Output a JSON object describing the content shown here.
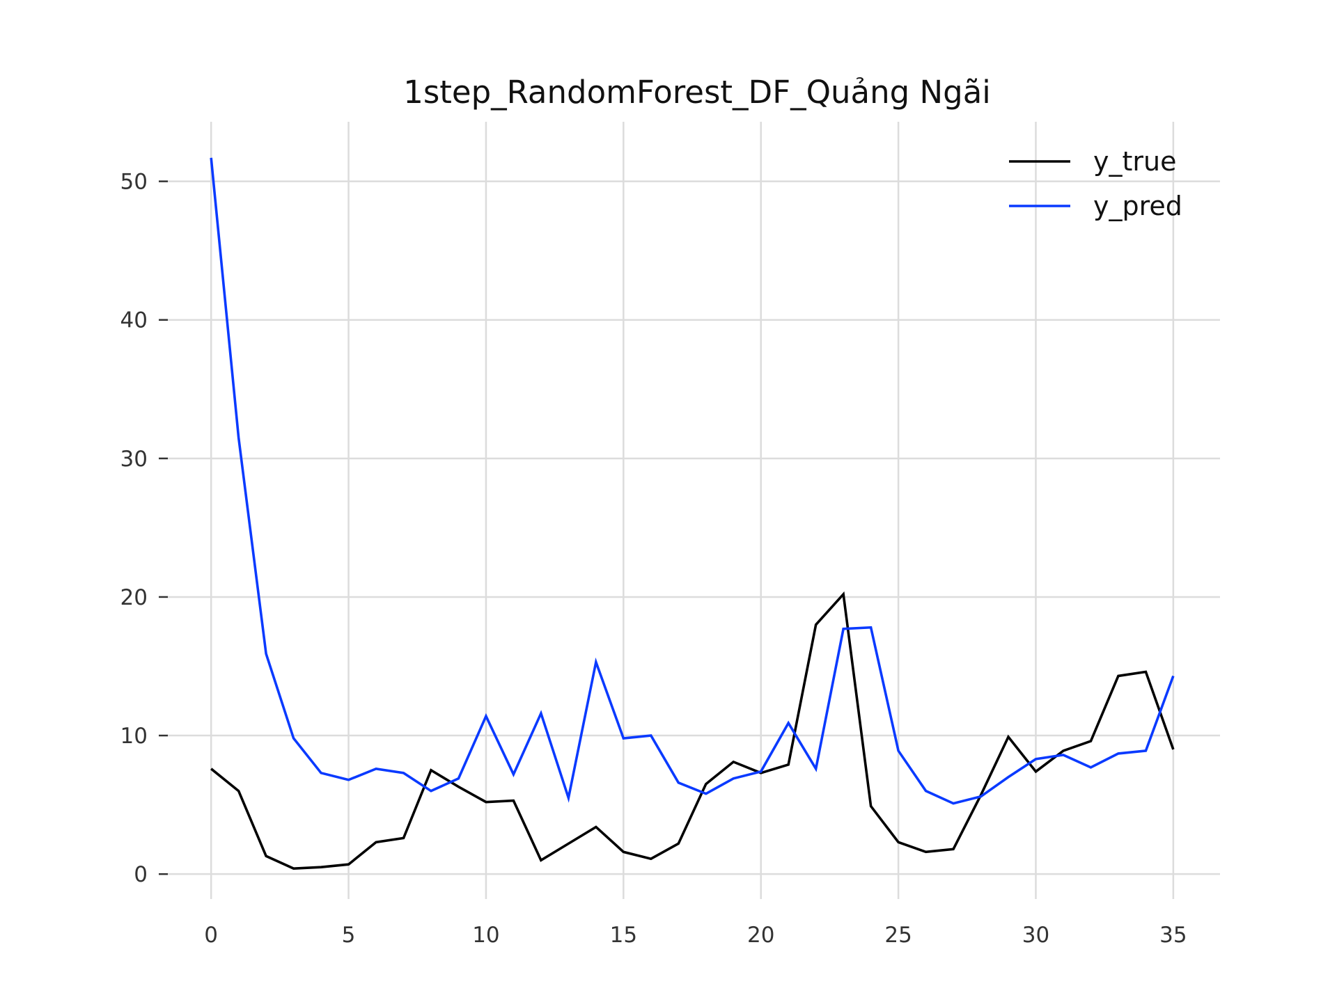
{
  "chart_data": {
    "type": "line",
    "title": "1step_RandomForest_DF_Quảng Ngãi",
    "xlabel": "",
    "ylabel": "",
    "xlim": [
      -1.6,
      36.7
    ],
    "ylim": [
      -1.8,
      54.3
    ],
    "x_ticks": [
      0,
      5,
      10,
      15,
      20,
      25,
      30,
      35
    ],
    "y_ticks": [
      0,
      10,
      20,
      30,
      40,
      50
    ],
    "grid": true,
    "legend_position": "top-right",
    "x": [
      0,
      1,
      2,
      3,
      4,
      5,
      6,
      7,
      8,
      9,
      10,
      11,
      12,
      13,
      14,
      15,
      16,
      17,
      18,
      19,
      20,
      21,
      22,
      23,
      24,
      25,
      26,
      27,
      28,
      29,
      30,
      31,
      32,
      33,
      34,
      35
    ],
    "series": [
      {
        "name": "y_true",
        "color": "#000000",
        "values": [
          7.6,
          6.0,
          1.3,
          0.4,
          0.5,
          0.7,
          2.3,
          2.6,
          7.5,
          6.3,
          5.2,
          5.3,
          1.0,
          2.2,
          3.4,
          1.6,
          1.1,
          2.2,
          6.5,
          8.1,
          7.3,
          7.9,
          18.0,
          20.2,
          4.9,
          2.3,
          1.6,
          1.8,
          5.7,
          9.9,
          7.4,
          8.9,
          9.6,
          14.3,
          14.6,
          9.0
        ]
      },
      {
        "name": "y_pred",
        "color": "#0a3aff",
        "values": [
          51.7,
          31.5,
          15.9,
          9.8,
          7.3,
          6.8,
          7.6,
          7.3,
          6.0,
          6.9,
          11.4,
          7.2,
          11.6,
          5.5,
          15.3,
          9.8,
          10.0,
          6.6,
          5.8,
          6.9,
          7.4,
          10.9,
          7.6,
          17.7,
          17.8,
          8.9,
          6.0,
          5.1,
          5.6,
          7.0,
          8.3,
          8.6,
          7.7,
          8.7,
          8.9,
          14.3
        ]
      }
    ]
  }
}
